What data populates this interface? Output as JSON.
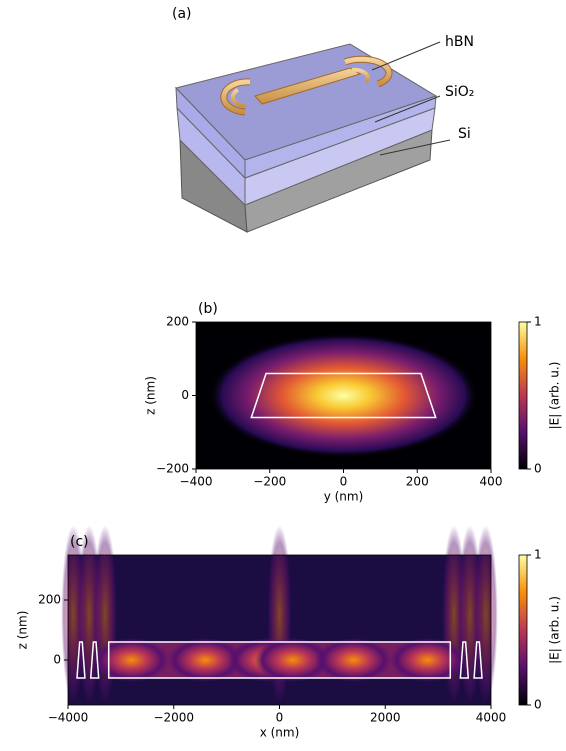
{
  "figure_a": {
    "label": "(a)",
    "layers": [
      "hBN",
      "SiO₂",
      "Si"
    ]
  },
  "chart_data": [
    {
      "type": "heatmap",
      "label": "(b)",
      "xlabel": "y (nm)",
      "ylabel": "z (nm)",
      "xlim": [
        -400,
        400
      ],
      "xticks": [
        {
          "value": -400,
          "label": "−400"
        },
        {
          "value": -200,
          "label": "−200"
        },
        0,
        200,
        400
      ],
      "ylim": [
        -200,
        200
      ],
      "yticks": [
        {
          "value": -200,
          "label": "−200"
        },
        0,
        200
      ],
      "colorbar": {
        "label": "|E| (arb. u.)",
        "lim": [
          0,
          1
        ],
        "ticks": [
          0,
          1
        ]
      },
      "outlines": [
        {
          "x": [
            -250,
            -210,
            210,
            250
          ],
          "y": [
            -60,
            60,
            60,
            -60
          ]
        }
      ]
    },
    {
      "type": "heatmap",
      "label": "(c)",
      "xlabel": "x (nm)",
      "ylabel": "z (nm)",
      "xlim": [
        -4000,
        4000
      ],
      "xticks": [
        {
          "value": -4000,
          "label": "−4000"
        },
        {
          "value": -2000,
          "label": "−2000"
        },
        0,
        2000,
        4000
      ],
      "ylim": [
        -150,
        350
      ],
      "yticks": [
        0,
        200
      ],
      "colorbar": {
        "label": "|E| (arb. u.)",
        "lim": [
          0,
          1
        ],
        "ticks": [
          0,
          1
        ]
      },
      "outlines": [
        {
          "x": [
            -3230,
            -3230,
            3230,
            3230
          ],
          "y": [
            -60,
            60,
            60,
            -60
          ]
        },
        {
          "x": [
            -3830,
            -3780,
            -3730,
            -3680
          ],
          "y": [
            -60,
            60,
            60,
            -60
          ]
        },
        {
          "x": [
            -3570,
            -3520,
            -3470,
            -3420
          ],
          "y": [
            -60,
            60,
            60,
            -60
          ]
        },
        {
          "x": [
            3420,
            3470,
            3520,
            3570
          ],
          "y": [
            -60,
            60,
            60,
            -60
          ]
        },
        {
          "x": [
            3680,
            3730,
            3780,
            3830
          ],
          "y": [
            -60,
            60,
            60,
            -60
          ]
        }
      ]
    }
  ]
}
